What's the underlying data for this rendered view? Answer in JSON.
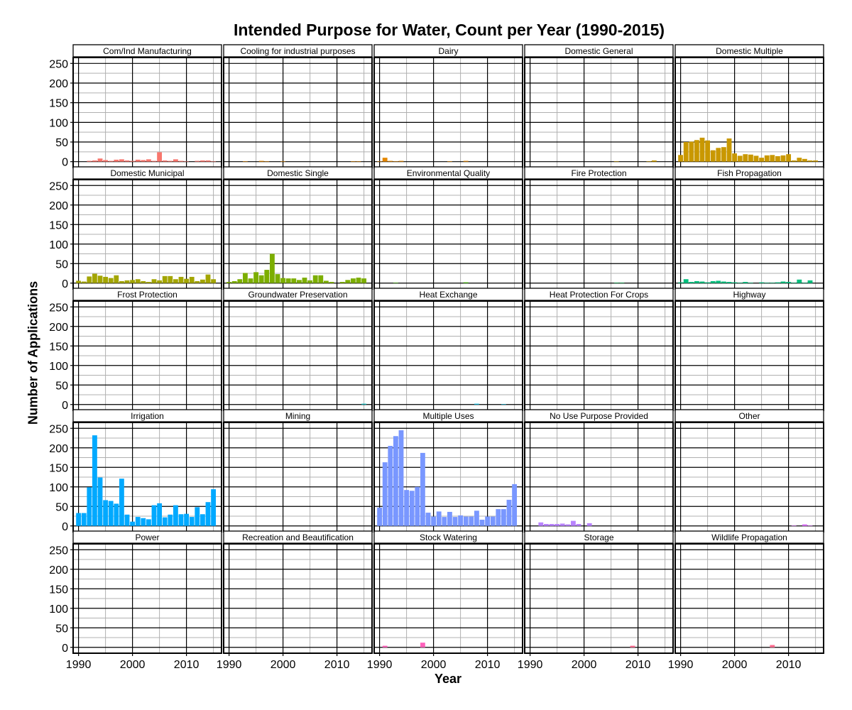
{
  "chart_data": {
    "type": "bar",
    "title": "Intended Purpose for Water, Count per Year (1990-2015)",
    "xlabel": "Year",
    "ylabel": "Number of Applications",
    "x": [
      1990,
      1991,
      1992,
      1993,
      1994,
      1995,
      1996,
      1997,
      1998,
      1999,
      2000,
      2001,
      2002,
      2003,
      2004,
      2005,
      2006,
      2007,
      2008,
      2009,
      2010,
      2011,
      2012,
      2013,
      2014,
      2015
    ],
    "xlim": [
      1989,
      2016.5
    ],
    "ylim": [
      -15,
      265
    ],
    "xticks": [
      1990,
      2000,
      2010
    ],
    "yticks": [
      0,
      50,
      100,
      150,
      200,
      250
    ],
    "grid": true,
    "legend": "none",
    "panels": [
      {
        "name": "Com/Ind Manufacturing",
        "color": "#F8766D",
        "values": [
          0,
          0,
          2,
          3,
          8,
          4,
          2,
          5,
          6,
          3,
          2,
          5,
          4,
          6,
          2,
          24,
          3,
          2,
          6,
          2,
          1,
          0,
          2,
          3,
          3,
          1
        ]
      },
      {
        "name": "Cooling for industrial purposes",
        "color": "#E58700",
        "values": [
          0,
          0,
          0,
          1,
          0,
          0,
          2,
          1,
          0,
          0,
          1,
          0,
          0,
          0,
          0,
          0,
          0,
          0,
          0,
          0,
          0,
          0,
          0,
          1,
          1,
          0
        ]
      },
      {
        "name": "Dairy",
        "color": "#E58700",
        "values": [
          1,
          10,
          2,
          1,
          2,
          0,
          0,
          0,
          0,
          0,
          0,
          0,
          0,
          1,
          0,
          0,
          2,
          0,
          0,
          0,
          0,
          0,
          0,
          0,
          0,
          0
        ]
      },
      {
        "name": "Domestic General",
        "color": "#C99800",
        "values": [
          0,
          0,
          0,
          0,
          0,
          0,
          0,
          0,
          0,
          0,
          0,
          0,
          0,
          0,
          0,
          0,
          1,
          0,
          0,
          0,
          0,
          0,
          1,
          3,
          0,
          0
        ]
      },
      {
        "name": "Domestic Multiple",
        "color": "#C99800",
        "values": [
          17,
          50,
          51,
          55,
          61,
          54,
          29,
          35,
          37,
          59,
          21,
          15,
          19,
          18,
          15,
          10,
          16,
          17,
          14,
          16,
          19,
          3,
          10,
          7,
          3,
          3
        ]
      },
      {
        "name": "Domestic Municipal",
        "color": "#A3A500",
        "values": [
          6,
          4,
          17,
          24,
          19,
          16,
          13,
          20,
          5,
          7,
          8,
          10,
          5,
          3,
          10,
          7,
          18,
          18,
          10,
          16,
          11,
          16,
          5,
          9,
          22,
          10
        ]
      },
      {
        "name": "Domestic Single",
        "color": "#7CAE00",
        "values": [
          3,
          5,
          10,
          26,
          12,
          28,
          20,
          34,
          75,
          23,
          13,
          12,
          12,
          8,
          14,
          7,
          20,
          20,
          6,
          3,
          0,
          3,
          8,
          12,
          14,
          12
        ]
      },
      {
        "name": "Environmental Quality",
        "color": "#39B600",
        "values": [
          0,
          0,
          0,
          1,
          0,
          0,
          0,
          0,
          0,
          0,
          0,
          0,
          0,
          0,
          0,
          0,
          2,
          0,
          0,
          0,
          0,
          0,
          0,
          0,
          0,
          0
        ]
      },
      {
        "name": "Fire Protection",
        "color": "#00BB4E",
        "values": [
          0,
          0,
          0,
          0,
          0,
          0,
          0,
          0,
          0,
          0,
          0,
          0,
          0,
          0,
          0,
          0,
          1,
          1,
          0,
          0,
          0,
          0,
          0,
          0,
          0,
          0
        ]
      },
      {
        "name": "Fish Propagation",
        "color": "#00BF7D",
        "values": [
          2,
          10,
          3,
          5,
          4,
          2,
          5,
          6,
          4,
          3,
          2,
          1,
          3,
          1,
          0,
          2,
          1,
          1,
          2,
          4,
          3,
          1,
          9,
          1,
          7,
          0
        ]
      },
      {
        "name": "Frost Protection",
        "color": "#00C1A3",
        "values": [
          0,
          0,
          0,
          0,
          0,
          0,
          0,
          0,
          0,
          0,
          0,
          0,
          0,
          0,
          0,
          0,
          0,
          0,
          0,
          0,
          0,
          0,
          0,
          0,
          0,
          0
        ]
      },
      {
        "name": "Groundwater Preservation",
        "color": "#00BFC4",
        "values": [
          0,
          0,
          0,
          0,
          0,
          0,
          0,
          0,
          0,
          0,
          0,
          0,
          0,
          0,
          0,
          0,
          0,
          0,
          0,
          0,
          0,
          0,
          0,
          0,
          0,
          2
        ]
      },
      {
        "name": "Heat Exchange",
        "color": "#00BAE0",
        "values": [
          0,
          0,
          0,
          0,
          0,
          0,
          0,
          0,
          0,
          0,
          0,
          0,
          0,
          0,
          0,
          0,
          0,
          0,
          2,
          0,
          0,
          0,
          0,
          1,
          0,
          0
        ]
      },
      {
        "name": "Heat Protection For Crops",
        "color": "#00B4EF",
        "values": [
          0,
          0,
          0,
          0,
          0,
          0,
          0,
          0,
          0,
          0,
          0,
          0,
          0,
          0,
          0,
          0,
          0,
          0,
          0,
          0,
          0,
          0,
          0,
          0,
          0,
          0
        ]
      },
      {
        "name": "Highway",
        "color": "#00A9FF",
        "values": [
          0,
          0,
          0,
          0,
          0,
          0,
          0,
          0,
          0,
          0,
          0,
          0,
          0,
          0,
          0,
          0,
          0,
          0,
          0,
          0,
          0,
          0,
          0,
          0,
          0,
          0
        ]
      },
      {
        "name": "Irrigation",
        "color": "#00A9FF",
        "values": [
          33,
          33,
          99,
          232,
          124,
          66,
          64,
          57,
          121,
          29,
          11,
          23,
          20,
          17,
          53,
          58,
          22,
          29,
          53,
          30,
          31,
          23,
          48,
          30,
          61,
          94
        ]
      },
      {
        "name": "Mining",
        "color": "#619CFF",
        "values": [
          0,
          0,
          0,
          0,
          0,
          0,
          0,
          0,
          0,
          0,
          0,
          0,
          0,
          0,
          0,
          0,
          0,
          0,
          0,
          0,
          0,
          0,
          0,
          0,
          0,
          0
        ]
      },
      {
        "name": "Multiple Uses",
        "color": "#7997FF",
        "values": [
          47,
          163,
          205,
          230,
          245,
          92,
          90,
          100,
          187,
          34,
          24,
          37,
          23,
          36,
          23,
          27,
          24,
          24,
          39,
          16,
          24,
          24,
          43,
          43,
          67,
          107
        ]
      },
      {
        "name": "No Use Purpose Provided",
        "color": "#B983FF",
        "values": [
          0,
          0,
          9,
          5,
          5,
          5,
          6,
          4,
          13,
          5,
          0,
          7,
          0,
          0,
          0,
          0,
          0,
          0,
          0,
          0,
          0,
          0,
          0,
          0,
          0,
          0
        ]
      },
      {
        "name": "Other",
        "color": "#DC71FA",
        "values": [
          0,
          0,
          0,
          0,
          0,
          0,
          0,
          0,
          0,
          0,
          0,
          0,
          0,
          0,
          0,
          0,
          0,
          0,
          0,
          0,
          0,
          1,
          0,
          4,
          1,
          0
        ]
      },
      {
        "name": "Power",
        "color": "#E76BF3",
        "values": [
          0,
          0,
          0,
          0,
          0,
          0,
          0,
          0,
          0,
          0,
          0,
          0,
          0,
          0,
          0,
          0,
          0,
          0,
          0,
          0,
          0,
          0,
          0,
          0,
          0,
          0
        ]
      },
      {
        "name": "Recreation and Beautification",
        "color": "#FA62DB",
        "values": [
          0,
          0,
          0,
          0,
          0,
          0,
          0,
          0,
          0,
          0,
          0,
          0,
          0,
          0,
          0,
          0,
          0,
          0,
          0,
          0,
          0,
          0,
          0,
          0,
          0,
          0
        ]
      },
      {
        "name": "Stock Watering",
        "color": "#FF62BC",
        "values": [
          0,
          4,
          0,
          0,
          0,
          0,
          0,
          0,
          12,
          0,
          0,
          0,
          0,
          0,
          0,
          0,
          0,
          0,
          0,
          0,
          0,
          0,
          0,
          0,
          0,
          0
        ]
      },
      {
        "name": "Storage",
        "color": "#FF6C91",
        "values": [
          0,
          0,
          0,
          0,
          0,
          0,
          0,
          0,
          0,
          0,
          0,
          0,
          0,
          0,
          0,
          0,
          0,
          0,
          0,
          4,
          0,
          0,
          0,
          0,
          0,
          0
        ]
      },
      {
        "name": "Wildlife Propagation",
        "color": "#FF6C91",
        "values": [
          0,
          0,
          0,
          0,
          0,
          0,
          0,
          0,
          0,
          0,
          0,
          0,
          0,
          0,
          0,
          0,
          0,
          6,
          0,
          0,
          0,
          0,
          0,
          0,
          0,
          0
        ]
      }
    ]
  }
}
